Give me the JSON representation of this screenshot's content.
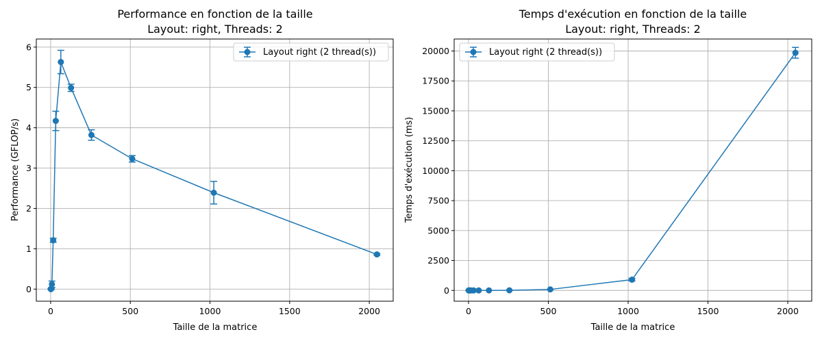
{
  "colors": {
    "series": "#1f77b4",
    "grid": "#b0b0b0"
  },
  "chart_data": [
    {
      "type": "line",
      "title": "Performance en fonction de la taille",
      "subtitle": "Layout: right, Threads: 2",
      "xlabel": "Taille de la matrice",
      "ylabel": "Performance (GFLOP/s)",
      "xlim": [
        -90,
        2150
      ],
      "ylim": [
        -0.3,
        6.2
      ],
      "xticks": [
        0,
        500,
        1000,
        1500,
        2000
      ],
      "xtick_labels": [
        "0",
        "500",
        "1000",
        "1500",
        "2000"
      ],
      "yticks": [
        0,
        1,
        2,
        3,
        4,
        5,
        6
      ],
      "ytick_labels": [
        "0",
        "1",
        "2",
        "3",
        "4",
        "5",
        "6"
      ],
      "grid": true,
      "legend_position": "top-right",
      "series": [
        {
          "name": "Layout right (2 thread(s))",
          "x": [
            1,
            2,
            4,
            8,
            16,
            32,
            64,
            128,
            256,
            512,
            1024,
            2048
          ],
          "y": [
            0.0,
            0.0,
            0.01,
            0.12,
            1.21,
            4.17,
            5.63,
            4.99,
            3.82,
            3.23,
            2.39,
            0.86
          ],
          "err": [
            0.0,
            0.0,
            0.02,
            0.08,
            0.05,
            0.24,
            0.29,
            0.09,
            0.13,
            0.08,
            0.28,
            0.02
          ]
        }
      ]
    },
    {
      "type": "line",
      "title": "Temps d'exécution en fonction de la taille",
      "subtitle": "Layout: right, Threads: 2",
      "xlabel": "Taille de la matrice",
      "ylabel": "Temps d'exécution (ms)",
      "xlim": [
        -90,
        2150
      ],
      "ylim": [
        -900,
        21000
      ],
      "xticks": [
        0,
        500,
        1000,
        1500,
        2000
      ],
      "xtick_labels": [
        "0",
        "500",
        "1000",
        "1500",
        "2000"
      ],
      "yticks": [
        0,
        2500,
        5000,
        7500,
        10000,
        12500,
        15000,
        17500,
        20000
      ],
      "ytick_labels": [
        "0",
        "2500",
        "5000",
        "7500",
        "10000",
        "12500",
        "15000",
        "17500",
        "20000"
      ],
      "grid": true,
      "legend_position": "top-left",
      "series": [
        {
          "name": "Layout right (2 thread(s))",
          "x": [
            1,
            2,
            4,
            8,
            16,
            32,
            64,
            128,
            256,
            512,
            1024,
            2048
          ],
          "y": [
            0,
            0,
            0,
            0,
            0,
            0,
            0,
            1,
            9,
            83,
            900,
            19850
          ],
          "err": [
            0,
            0,
            0,
            0,
            0,
            0,
            0,
            0,
            1,
            3,
            110,
            450
          ]
        }
      ]
    }
  ]
}
